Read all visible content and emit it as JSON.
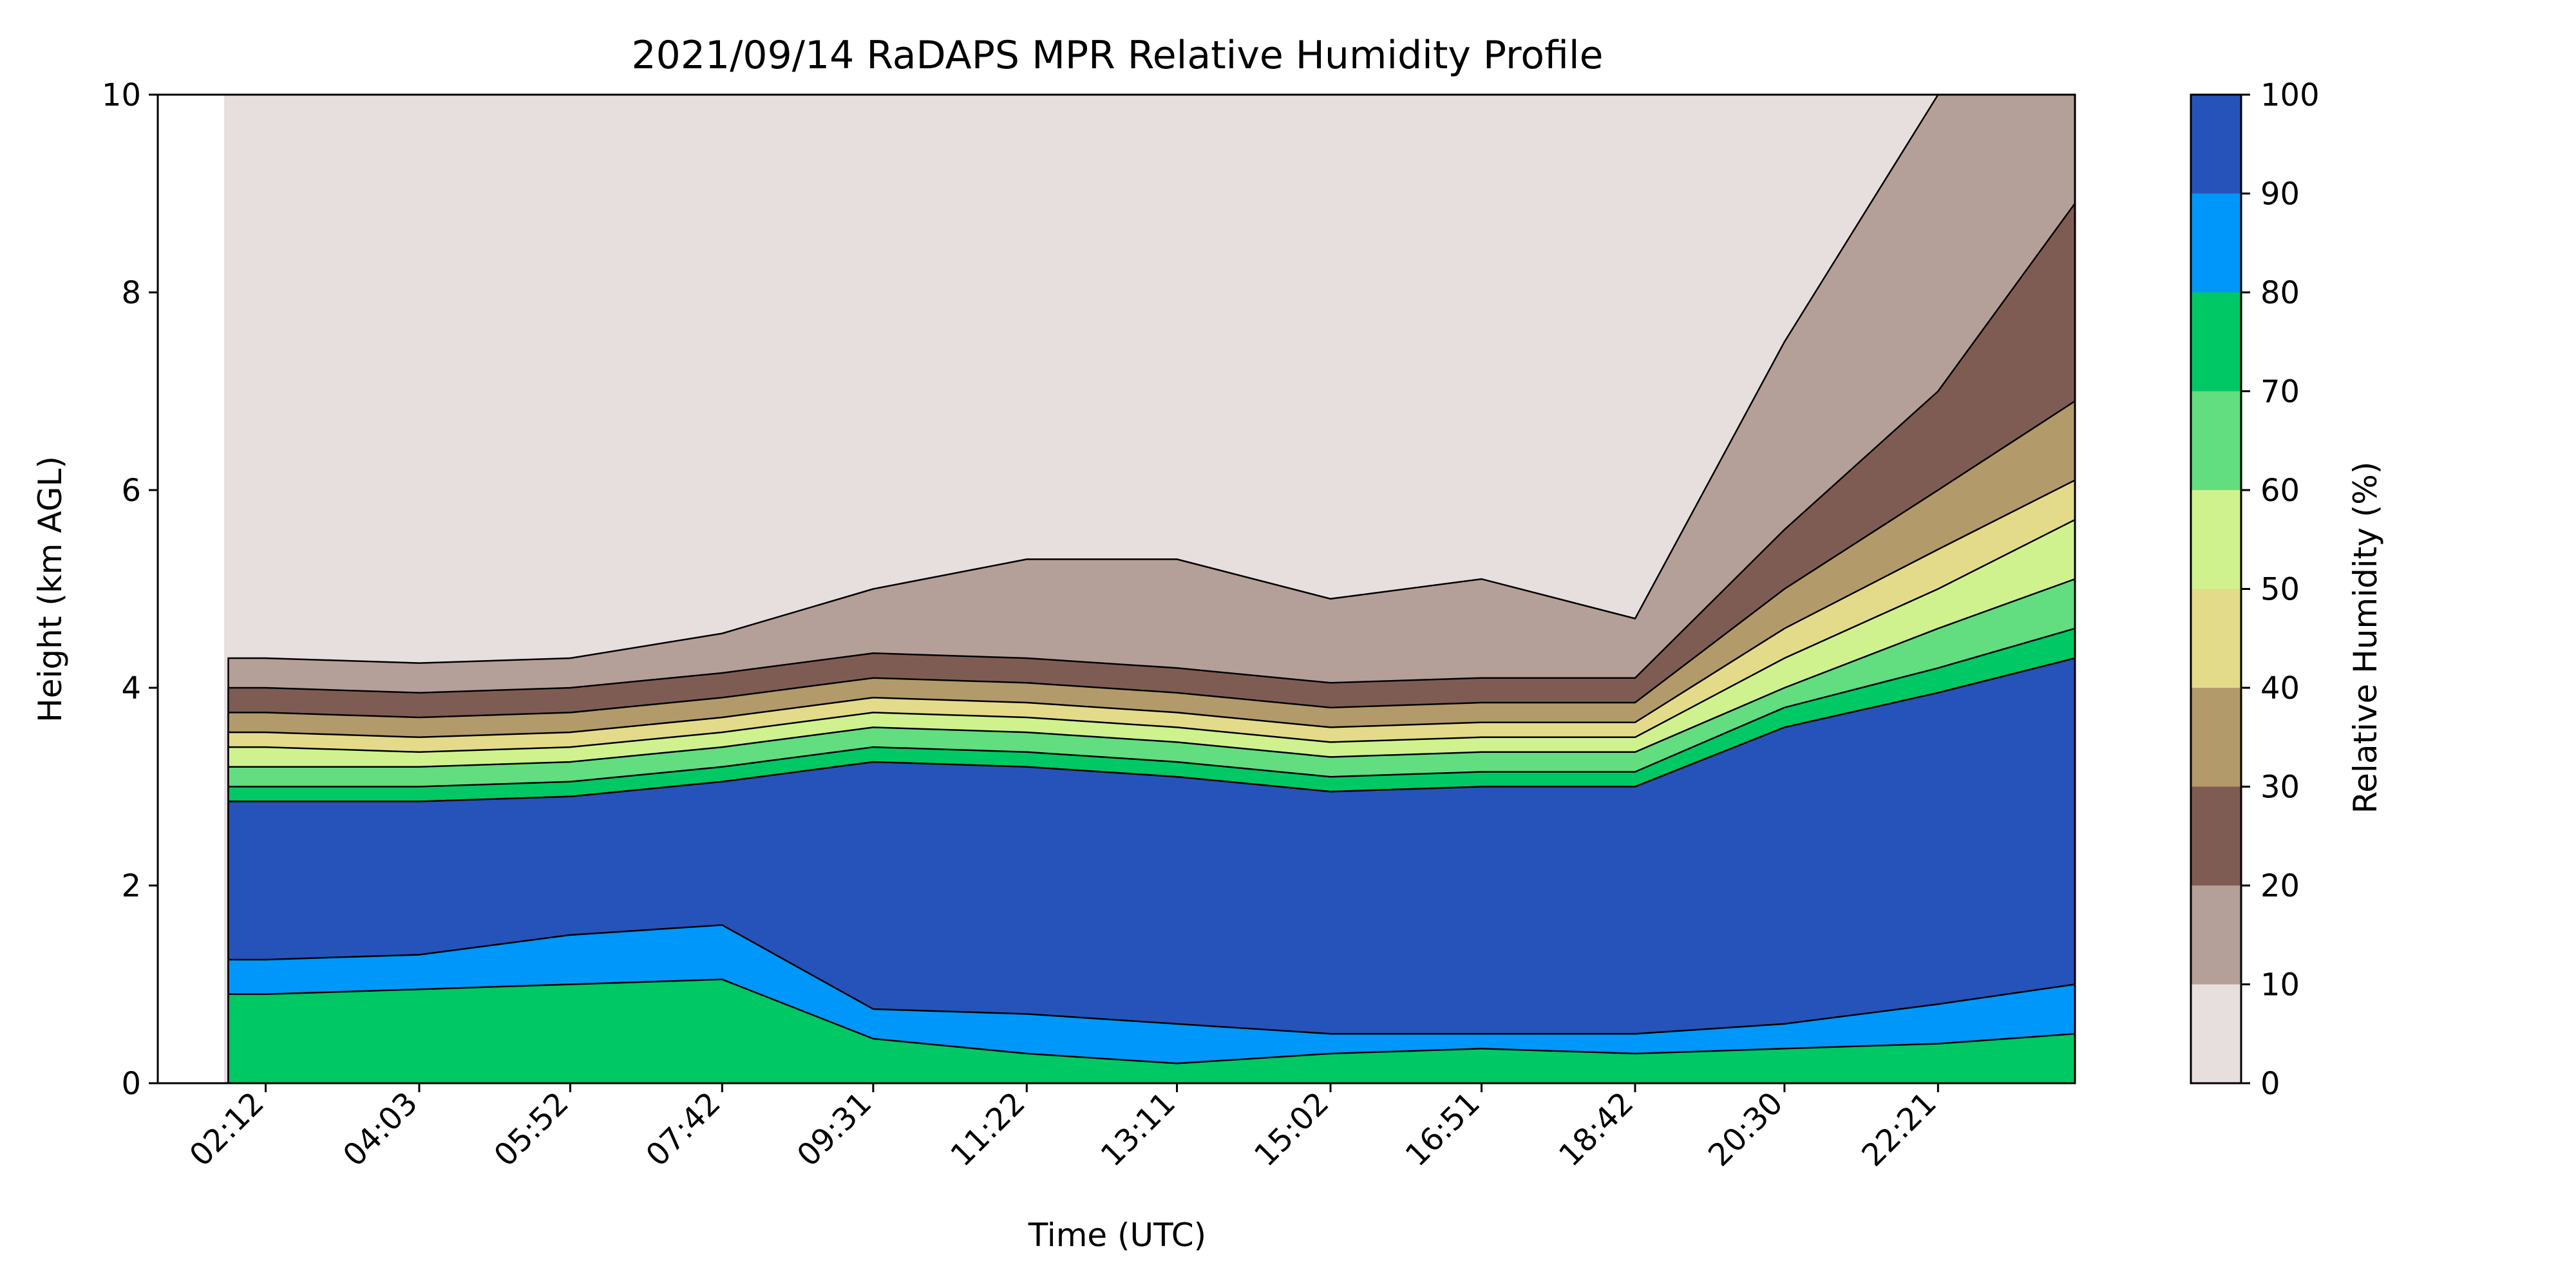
{
  "chart_data": {
    "type": "area",
    "title": "2021/09/14 RaDAPS MPR Relative Humidity Profile",
    "xlabel": "Time (UTC)",
    "ylabel": "Height (km AGL)",
    "x_tick_labels": [
      "02:12",
      "04:03",
      "05:52",
      "07:42",
      "09:31",
      "11:22",
      "13:11",
      "15:02",
      "16:51",
      "18:42",
      "20:30",
      "22:21"
    ],
    "x_tick_hours": [
      2.2,
      4.05,
      5.87,
      7.7,
      9.52,
      11.37,
      13.18,
      15.03,
      16.85,
      18.7,
      20.5,
      22.35
    ],
    "xlim_hours": [
      0.9,
      24.0
    ],
    "ylim": [
      0,
      10
    ],
    "y_ticks": [
      0,
      2,
      4,
      6,
      8,
      10
    ],
    "colorbar": {
      "label": "Relative Humidity (%)",
      "ticks": [
        0,
        10,
        20,
        30,
        40,
        50,
        60,
        70,
        80,
        90,
        100
      ],
      "levels": [
        {
          "range": "0-10",
          "color": "#e6dfde"
        },
        {
          "range": "10-20",
          "color": "#b59f99"
        },
        {
          "range": "20-30",
          "color": "#7f5c53"
        },
        {
          "range": "30-40",
          "color": "#b29a6a"
        },
        {
          "range": "40-50",
          "color": "#e3db8a"
        },
        {
          "range": "50-60",
          "color": "#cff28e"
        },
        {
          "range": "60-70",
          "color": "#62dd7f"
        },
        {
          "range": "70-80",
          "color": "#00c864"
        },
        {
          "range": "80-90",
          "color": "#0097fa"
        },
        {
          "range": "90-100",
          "color": "#2553b9"
        }
      ]
    },
    "contour_tops_km": {
      "hours": [
        2.2,
        4.05,
        5.87,
        7.7,
        9.52,
        11.37,
        13.18,
        15.03,
        16.85,
        18.7,
        20.5,
        22.35,
        24.0
      ],
      "rh_90": [
        2.85,
        2.85,
        2.9,
        3.05,
        3.25,
        3.2,
        3.1,
        2.95,
        3.0,
        3.0,
        3.6,
        3.95,
        4.3
      ],
      "rh_80": [
        3.0,
        3.0,
        3.05,
        3.2,
        3.4,
        3.35,
        3.25,
        3.1,
        3.15,
        3.15,
        3.8,
        4.2,
        4.6
      ],
      "rh_70": [
        3.2,
        3.2,
        3.25,
        3.4,
        3.6,
        3.55,
        3.45,
        3.3,
        3.35,
        3.35,
        4.0,
        4.6,
        5.1
      ],
      "rh_60": [
        3.4,
        3.35,
        3.4,
        3.55,
        3.75,
        3.7,
        3.6,
        3.45,
        3.5,
        3.5,
        4.3,
        5.0,
        5.7
      ],
      "rh_50": [
        3.55,
        3.5,
        3.55,
        3.7,
        3.9,
        3.85,
        3.75,
        3.6,
        3.65,
        3.65,
        4.6,
        5.4,
        6.1
      ],
      "rh_40": [
        3.75,
        3.7,
        3.75,
        3.9,
        4.1,
        4.05,
        3.95,
        3.8,
        3.85,
        3.85,
        5.0,
        6.0,
        6.9
      ],
      "rh_30": [
        4.0,
        3.95,
        4.0,
        4.15,
        4.35,
        4.3,
        4.2,
        4.05,
        4.1,
        4.1,
        5.6,
        7.0,
        8.9
      ],
      "rh_20": [
        4.3,
        4.25,
        4.3,
        4.55,
        5.0,
        5.3,
        5.3,
        4.9,
        5.1,
        4.7,
        7.5,
        10.0,
        10.0
      ]
    },
    "lower_layer_km": {
      "hours": [
        2.2,
        4.05,
        5.87,
        7.7,
        9.52,
        11.37,
        13.18,
        15.03,
        16.85,
        18.7,
        20.5,
        22.35,
        24.0
      ],
      "rh_90_base": [
        1.25,
        1.3,
        1.5,
        1.6,
        0.75,
        0.7,
        0.6,
        0.5,
        0.5,
        0.5,
        0.6,
        0.8,
        1.0
      ],
      "rh_80_base": [
        0.9,
        0.95,
        1.0,
        1.05,
        0.45,
        0.3,
        0.2,
        0.3,
        0.35,
        0.3,
        0.35,
        0.4,
        0.5
      ]
    }
  }
}
